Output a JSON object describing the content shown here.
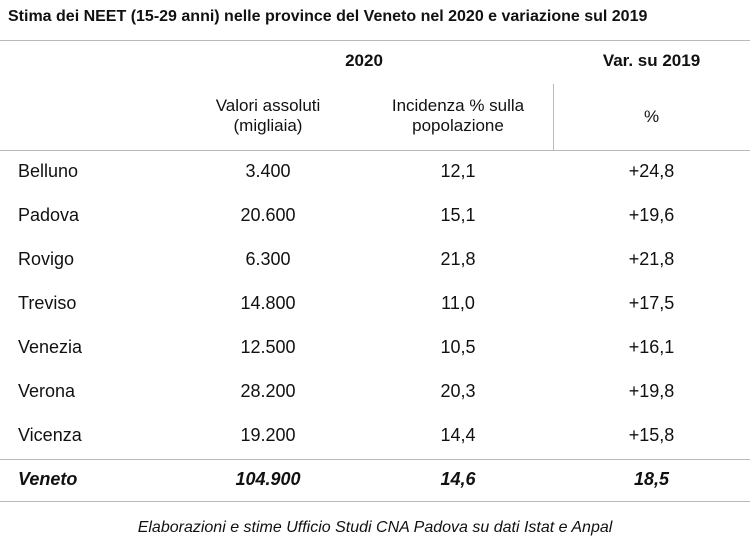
{
  "title": "Stima dei NEET (15-29 anni) nelle province del Veneto nel 2020 e variazione sul 2019",
  "header": {
    "group_2020": "2020",
    "group_var": "Var. su 2019",
    "col_valori": "Valori assoluti (migliaia)",
    "col_incidenza": "Incidenza % sulla popolazione",
    "col_var": "%"
  },
  "rows": [
    {
      "provincia": "Belluno",
      "valori": "3.400",
      "incidenza": "12,1",
      "variazione": "+24,8"
    },
    {
      "provincia": "Padova",
      "valori": "20.600",
      "incidenza": "15,1",
      "variazione": "+19,6"
    },
    {
      "provincia": "Rovigo",
      "valori": "6.300",
      "incidenza": "21,8",
      "variazione": "+21,8"
    },
    {
      "provincia": "Treviso",
      "valori": "14.800",
      "incidenza": "11,0",
      "variazione": "+17,5"
    },
    {
      "provincia": "Venezia",
      "valori": "12.500",
      "incidenza": "10,5",
      "variazione": "+16,1"
    },
    {
      "provincia": "Verona",
      "valori": "28.200",
      "incidenza": "20,3",
      "variazione": "+19,8"
    },
    {
      "provincia": "Vicenza",
      "valori": "19.200",
      "incidenza": "14,4",
      "variazione": "+15,8"
    }
  ],
  "total": {
    "provincia": "Veneto",
    "valori": "104.900",
    "incidenza": "14,6",
    "variazione": "18,5"
  },
  "source": "Elaborazioni e stime Ufficio Studi CNA Padova su dati Istat e Anpal"
}
